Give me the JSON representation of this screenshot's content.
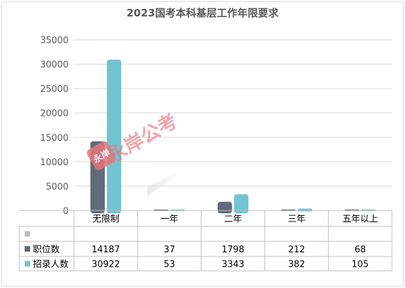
{
  "chart_data": {
    "type": "bar",
    "title": "2023国考本科基层工作年限要求",
    "categories": [
      "无限制",
      "一年",
      "二年",
      "三年",
      "五年以上"
    ],
    "series": [
      {
        "name": "职位数",
        "values": [
          14187,
          37,
          1798,
          212,
          68
        ],
        "color": "#5f6b7a"
      },
      {
        "name": "招录人数",
        "values": [
          30922,
          53,
          3343,
          382,
          105
        ],
        "color": "#72c4d1"
      }
    ],
    "blank_row_color": "#bfbfbf",
    "ylim": [
      0,
      35000
    ],
    "yticks": [
      0,
      5000,
      10000,
      15000,
      20000,
      25000,
      30000,
      35000
    ],
    "ytick_labels": [
      "0",
      "5000",
      "10000",
      "15000",
      "20000",
      "25000",
      "30000",
      "35000"
    ],
    "grid": true,
    "legend": "data-table"
  },
  "watermark": {
    "text": "永岸公考"
  }
}
